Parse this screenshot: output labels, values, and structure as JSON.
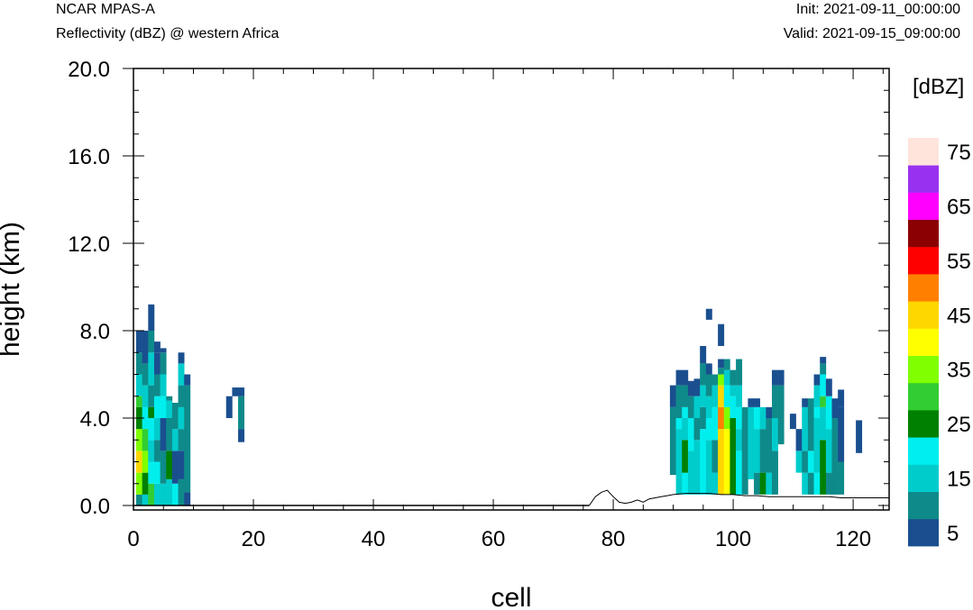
{
  "header": {
    "model": "NCAR MPAS-A",
    "field": "Reflectivity (dBZ) @ western Africa",
    "init": "Init: 2021-09-11_00:00:00",
    "valid": "Valid: 2021-09-15_09:00:00"
  },
  "chart_data": {
    "type": "heatmap",
    "title": "Reflectivity (dBZ) @ western Africa",
    "xlabel": "cell",
    "ylabel": "height (km)",
    "xlim": [
      0,
      126
    ],
    "ylim": [
      0,
      20
    ],
    "x_ticks": [
      0,
      20,
      40,
      60,
      80,
      100,
      120
    ],
    "y_ticks": [
      0,
      4,
      8,
      12,
      16,
      20
    ],
    "y_tick_labels": [
      "0.0",
      "4.0",
      "8.0",
      "12.0",
      "16.0",
      "20.0"
    ],
    "colorbar": {
      "unit_label": "[dBZ]",
      "levels": [
        5,
        10,
        15,
        20,
        25,
        30,
        35,
        40,
        45,
        50,
        55,
        60,
        65,
        70,
        75
      ],
      "tick_labels": [
        "5",
        "15",
        "25",
        "35",
        "45",
        "55",
        "65",
        "75"
      ],
      "colors": [
        "#1a4f8f",
        "#0f8a8a",
        "#00cccc",
        "#00eeee",
        "#008000",
        "#32cd32",
        "#80ff00",
        "#ffff00",
        "#ffd700",
        "#ff8000",
        "#ff0000",
        "#8b0000",
        "#ff00ff",
        "#9932f0",
        "#ffe4dc"
      ]
    },
    "grid": false,
    "terrain": [
      [
        76,
        0.0
      ],
      [
        77,
        0.4
      ],
      [
        78,
        0.6
      ],
      [
        79,
        0.7
      ],
      [
        80,
        0.4
      ],
      [
        81,
        0.15
      ],
      [
        82,
        0.1
      ],
      [
        83,
        0.15
      ],
      [
        84,
        0.25
      ],
      [
        85,
        0.15
      ],
      [
        86,
        0.3
      ],
      [
        87,
        0.35
      ],
      [
        88,
        0.4
      ],
      [
        89,
        0.45
      ],
      [
        90,
        0.5
      ],
      [
        92,
        0.55
      ],
      [
        94,
        0.55
      ],
      [
        96,
        0.55
      ],
      [
        98,
        0.5
      ],
      [
        100,
        0.5
      ],
      [
        102,
        0.45
      ],
      [
        104,
        0.45
      ],
      [
        106,
        0.4
      ],
      [
        108,
        0.4
      ],
      [
        110,
        0.4
      ],
      [
        112,
        0.4
      ],
      [
        114,
        0.4
      ],
      [
        116,
        0.4
      ],
      [
        118,
        0.35
      ],
      [
        120,
        0.35
      ],
      [
        122,
        0.35
      ],
      [
        124,
        0.35
      ],
      [
        126,
        0.35
      ]
    ],
    "columns": [
      {
        "x": 0,
        "cells": [
          [
            0,
            0.5,
            10
          ],
          [
            0.5,
            1.5,
            35
          ],
          [
            1.5,
            2.5,
            45
          ],
          [
            2.5,
            3.5,
            35
          ],
          [
            3.5,
            4.5,
            25
          ],
          [
            4.5,
            5,
            30
          ],
          [
            5,
            6,
            15
          ],
          [
            6,
            7,
            10
          ],
          [
            7,
            8,
            5
          ]
        ]
      },
      {
        "x": 1,
        "cells": [
          [
            0,
            0.5,
            15
          ],
          [
            0.5,
            1.5,
            25
          ],
          [
            1.5,
            2.5,
            35
          ],
          [
            2.5,
            3.5,
            30
          ],
          [
            3.5,
            4.5,
            20
          ],
          [
            4.5,
            5.5,
            15
          ],
          [
            5.5,
            6.5,
            10
          ],
          [
            6.5,
            8,
            5
          ]
        ]
      },
      {
        "x": 2,
        "cells": [
          [
            0,
            1,
            30
          ],
          [
            1,
            2,
            20
          ],
          [
            2,
            3,
            15
          ],
          [
            3,
            4,
            20
          ],
          [
            4,
            4.5,
            25
          ],
          [
            4.5,
            5.5,
            10
          ],
          [
            5.5,
            7,
            15
          ],
          [
            7,
            8,
            10
          ],
          [
            8,
            9.2,
            5
          ]
        ]
      },
      {
        "x": 3,
        "cells": [
          [
            0,
            1,
            15
          ],
          [
            1,
            2,
            20
          ],
          [
            2,
            3,
            10
          ],
          [
            3,
            4,
            15
          ],
          [
            4,
            5,
            20
          ],
          [
            5,
            6,
            10
          ],
          [
            6,
            7,
            5
          ],
          [
            7,
            7.5,
            5
          ]
        ]
      },
      {
        "x": 4,
        "cells": [
          [
            0,
            1,
            15
          ],
          [
            1,
            2.5,
            10
          ],
          [
            2.5,
            4,
            5
          ],
          [
            4,
            5,
            20
          ],
          [
            5,
            6,
            15
          ],
          [
            6,
            7,
            10
          ],
          [
            7,
            7.2,
            5
          ]
        ]
      },
      {
        "x": 5,
        "cells": [
          [
            0,
            1.2,
            15
          ],
          [
            1.2,
            2.5,
            25
          ],
          [
            2.5,
            4,
            10
          ],
          [
            4,
            4.8,
            15
          ],
          [
            4.8,
            5,
            10
          ]
        ]
      },
      {
        "x": 6,
        "cells": [
          [
            0,
            1,
            20
          ],
          [
            1,
            2.5,
            5
          ],
          [
            2.5,
            3.5,
            15
          ],
          [
            3.5,
            4.7,
            10
          ]
        ]
      },
      {
        "x": 7,
        "cells": [
          [
            0,
            1.2,
            10
          ],
          [
            1.2,
            2.5,
            5
          ],
          [
            2.5,
            3.5,
            10
          ],
          [
            3.5,
            4.5,
            15
          ],
          [
            4.5,
            5.5,
            10
          ],
          [
            5.5,
            6.5,
            15
          ],
          [
            6.5,
            7,
            5
          ]
        ]
      },
      {
        "x": 8,
        "cells": [
          [
            0,
            0.6,
            5
          ],
          [
            0.6,
            5.5,
            10
          ],
          [
            5.5,
            6,
            5
          ]
        ]
      },
      {
        "x": 15,
        "cells": [
          [
            4,
            5,
            5
          ]
        ]
      },
      {
        "x": 16,
        "cells": [
          [
            5,
            5.4,
            5
          ]
        ]
      },
      {
        "x": 17,
        "cells": [
          [
            2.9,
            3.5,
            5
          ],
          [
            3.5,
            5,
            10
          ],
          [
            5,
            5.4,
            5
          ]
        ]
      },
      {
        "x": 89,
        "cells": [
          [
            1.4,
            4.5,
            10
          ],
          [
            4.5,
            5.5,
            5
          ]
        ]
      },
      {
        "x": 90,
        "cells": [
          [
            0.5,
            3.5,
            15
          ],
          [
            3.5,
            4,
            20
          ],
          [
            4,
            5.5,
            10
          ],
          [
            5.5,
            6.2,
            5
          ]
        ]
      },
      {
        "x": 91,
        "cells": [
          [
            0.5,
            1.5,
            20
          ],
          [
            1.5,
            3,
            25
          ],
          [
            3,
            4,
            15
          ],
          [
            4,
            4.5,
            20
          ],
          [
            4.5,
            5.5,
            10
          ],
          [
            5.5,
            6.2,
            5
          ]
        ]
      },
      {
        "x": 92,
        "cells": [
          [
            0.5,
            2.5,
            15
          ],
          [
            2.5,
            4,
            20
          ],
          [
            4,
            5,
            10
          ],
          [
            5,
            5.7,
            5
          ]
        ]
      },
      {
        "x": 93,
        "cells": [
          [
            0.5,
            3,
            15
          ],
          [
            3,
            4,
            10
          ],
          [
            4,
            5,
            15
          ],
          [
            5,
            5.8,
            5
          ]
        ]
      },
      {
        "x": 94,
        "cells": [
          [
            0.5,
            3.5,
            20
          ],
          [
            3.5,
            4.5,
            10
          ],
          [
            4.5,
            5.5,
            15
          ],
          [
            5.5,
            6.5,
            10
          ],
          [
            6.5,
            7.3,
            5
          ]
        ]
      },
      {
        "x": 95,
        "cells": [
          [
            0.5,
            3,
            15
          ],
          [
            3,
            4,
            20
          ],
          [
            4,
            5,
            15
          ],
          [
            5,
            6,
            10
          ],
          [
            6,
            6.5,
            5
          ],
          [
            8.5,
            9,
            5
          ]
        ]
      },
      {
        "x": 96,
        "cells": [
          [
            0.5,
            1.5,
            15
          ],
          [
            1.5,
            3,
            10
          ],
          [
            3,
            4.5,
            20
          ],
          [
            4.5,
            5.5,
            15
          ],
          [
            5.5,
            6,
            10
          ]
        ]
      },
      {
        "x": 97,
        "cells": [
          [
            0.5,
            3.5,
            45
          ],
          [
            3.5,
            4.5,
            50
          ],
          [
            4.5,
            5.5,
            45
          ],
          [
            5.5,
            6,
            35
          ],
          [
            6,
            6.3,
            10
          ],
          [
            6.3,
            6.7,
            5
          ],
          [
            7.3,
            8.3,
            5
          ]
        ]
      },
      {
        "x": 98,
        "cells": [
          [
            0.5,
            3.5,
            40
          ],
          [
            3.5,
            4.5,
            35
          ],
          [
            4.5,
            5.5,
            20
          ],
          [
            5.5,
            6.2,
            15
          ],
          [
            6.2,
            6.7,
            10
          ]
        ]
      },
      {
        "x": 99,
        "cells": [
          [
            0.5,
            4,
            25
          ],
          [
            4,
            5,
            20
          ],
          [
            5,
            5.5,
            15
          ],
          [
            5.5,
            6.2,
            10
          ]
        ]
      },
      {
        "x": 100,
        "cells": [
          [
            0.5,
            2.5,
            20
          ],
          [
            2.5,
            3.5,
            15
          ],
          [
            3.5,
            4.5,
            20
          ],
          [
            4.5,
            5.5,
            15
          ],
          [
            5.5,
            6.7,
            10
          ]
        ]
      },
      {
        "x": 101,
        "cells": [
          [
            0.5,
            4.5,
            10
          ]
        ]
      },
      {
        "x": 102,
        "cells": [
          [
            1.2,
            4.5,
            15
          ],
          [
            4.5,
            4.9,
            5
          ]
        ]
      },
      {
        "x": 103,
        "cells": [
          [
            0.5,
            1.5,
            10
          ],
          [
            1.5,
            3.5,
            15
          ],
          [
            3.5,
            4.5,
            20
          ],
          [
            4.5,
            4.9,
            5
          ]
        ]
      },
      {
        "x": 104,
        "cells": [
          [
            0.5,
            1.5,
            25
          ],
          [
            1.5,
            3.5,
            10
          ],
          [
            3.5,
            4.5,
            15
          ]
        ]
      },
      {
        "x": 105,
        "cells": [
          [
            0.5,
            1.5,
            15
          ],
          [
            1.5,
            4,
            10
          ],
          [
            4,
            4.5,
            5
          ]
        ]
      },
      {
        "x": 106,
        "cells": [
          [
            0.5,
            2.5,
            10
          ],
          [
            2.5,
            4,
            15
          ],
          [
            4,
            5.5,
            10
          ],
          [
            5.5,
            6.2,
            5
          ]
        ]
      },
      {
        "x": 107,
        "cells": [
          [
            2.8,
            5.5,
            10
          ],
          [
            5.5,
            6.2,
            5
          ]
        ]
      },
      {
        "x": 109,
        "cells": [
          [
            3.5,
            4.2,
            5
          ]
        ]
      },
      {
        "x": 110,
        "cells": [
          [
            1.5,
            2.5,
            15
          ],
          [
            2.5,
            3.5,
            5
          ]
        ]
      },
      {
        "x": 111,
        "cells": [
          [
            0.5,
            1.5,
            15
          ],
          [
            1.5,
            2.5,
            10
          ],
          [
            2.5,
            4.5,
            15
          ],
          [
            4.5,
            4.9,
            5
          ]
        ]
      },
      {
        "x": 112,
        "cells": [
          [
            0.5,
            1.5,
            10
          ],
          [
            1.5,
            2.5,
            20
          ],
          [
            2.5,
            4.9,
            10
          ]
        ]
      },
      {
        "x": 113,
        "cells": [
          [
            0.5,
            1.5,
            20
          ],
          [
            1.5,
            4,
            15
          ],
          [
            4,
            4.5,
            20
          ],
          [
            4.5,
            5.5,
            15
          ],
          [
            5.5,
            6,
            5
          ]
        ]
      },
      {
        "x": 114,
        "cells": [
          [
            0.5,
            3,
            25
          ],
          [
            3,
            4.5,
            15
          ],
          [
            4.5,
            5,
            30
          ],
          [
            5,
            6,
            20
          ],
          [
            6,
            6.5,
            10
          ],
          [
            6.5,
            6.8,
            5
          ]
        ]
      },
      {
        "x": 115,
        "cells": [
          [
            0.5,
            1.5,
            10
          ],
          [
            1.5,
            3.5,
            15
          ],
          [
            3.5,
            5,
            20
          ],
          [
            5,
            5.8,
            5
          ]
        ]
      },
      {
        "x": 116,
        "cells": [
          [
            0.5,
            4,
            10
          ],
          [
            4,
            4.9,
            5
          ]
        ]
      },
      {
        "x": 117,
        "cells": [
          [
            0.5,
            2,
            10
          ],
          [
            2,
            4.5,
            5
          ],
          [
            4.5,
            5.3,
            5
          ]
        ]
      },
      {
        "x": 120,
        "cells": [
          [
            2.4,
            3.9,
            5
          ]
        ]
      }
    ]
  }
}
